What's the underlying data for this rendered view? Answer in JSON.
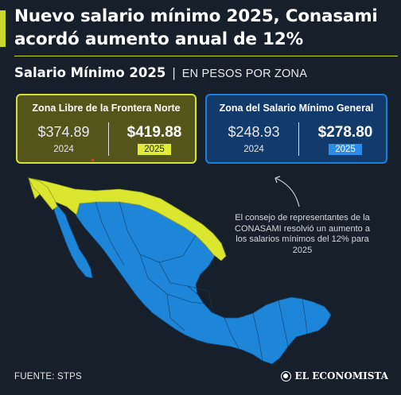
{
  "headline": {
    "title": "Nuevo salario mínimo 2025, Conasami acordó aumento anual de 12%"
  },
  "subtitle": {
    "main": "Salario Mínimo 2025",
    "separator": "|",
    "unit": "EN PESOS POR ZONA"
  },
  "zones": [
    {
      "title": "Zona Libre de la Frontera Norte",
      "previous_amount": "$374.89",
      "previous_year": "2024",
      "new_amount": "$419.88",
      "new_year": "2025"
    },
    {
      "title": "Zona del Salario Mínimo General",
      "previous_amount": "$248.93",
      "previous_year": "2024",
      "new_amount": "$278.80",
      "new_year": "2025"
    }
  ],
  "note": "El consejo de representantes de la CONASAMI resolvió un aumento a los salarios mínimos del 12% para 2025",
  "footer": {
    "source": "FUENTE: STPS",
    "brand": "EL ECONOMISTA"
  },
  "colors": {
    "background": "#161f2a",
    "accent_yellow": "#d4e032",
    "accent_blue": "#1f7fd8",
    "map_north_zone": "#dbe62e",
    "map_general_zone": "#1e86d8"
  }
}
